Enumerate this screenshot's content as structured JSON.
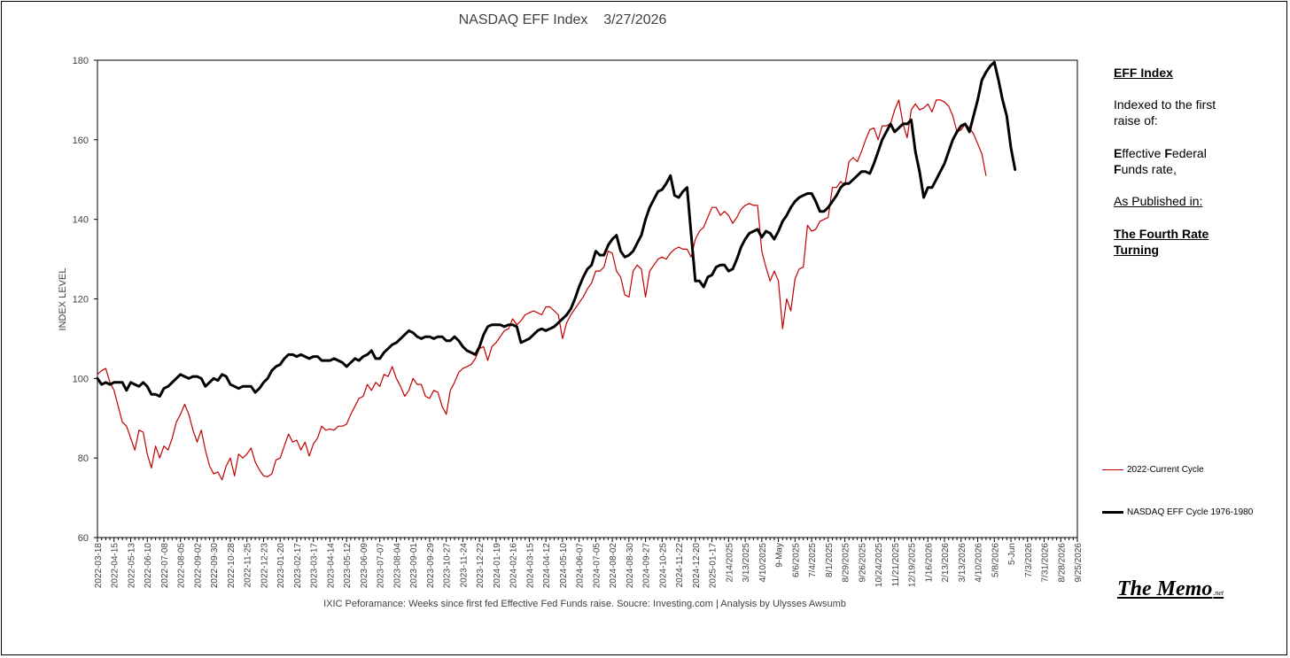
{
  "side_notes": {
    "heading": "EFF Index",
    "line1": "Indexed to the first",
    "line2": "raise of:",
    "line3_E": "E",
    "line3_a": "ffective ",
    "line3_F": "F",
    "line3_b": "ederal",
    "line4_F": "F",
    "line4_b": "unds rate",
    "line4_c": ",",
    "published": "As Published in:",
    "pub1": "The Fourth Rate",
    "pub2": "Turning"
  },
  "brand": {
    "name": "The Memo",
    "suffix": ".net"
  },
  "colors": {
    "current_cycle": "#c00000",
    "eff_cycle": "#000000",
    "axis": "#000000",
    "tick_text": "#404040"
  },
  "chart_data": {
    "type": "line",
    "title": "NASDAQ EFF Index    3/27/2026",
    "ylabel": "INDEX LEVEL",
    "xlabel": "IXIC Peforamance: Weeks since first fed Effective Fed Funds raise.   Soucre: Investing.com  | Analysis by Ulysses Awsumb",
    "ylim": [
      60,
      180
    ],
    "yticks": [
      60,
      80,
      100,
      120,
      140,
      160,
      180
    ],
    "grid": false,
    "legend_placement": "right",
    "x_tick_labels": [
      "2022-03-18",
      "2022-04-15",
      "2022-05-13",
      "2022-06-10",
      "2022-07-08",
      "2022-08-05",
      "2022-09-02",
      "2022-09-30",
      "2022-10-28",
      "2022-11-25",
      "2022-12-23",
      "2023-01-20",
      "2023-02-17",
      "2023-03-17",
      "2023-04-14",
      "2023-05-12",
      "2023-06-09",
      "2023-07-07",
      "2023-08-04",
      "2023-09-01",
      "2023-09-29",
      "2023-10-27",
      "2023-11-24",
      "2023-12-22",
      "2024-01-19",
      "2024-02-16",
      "2024-03-15",
      "2024-04-12",
      "2024-05-10",
      "2024-06-07",
      "2024-07-05",
      "2024-08-02",
      "2024-08-30",
      "2024-09-27",
      "2024-10-25",
      "2024-11-22",
      "2024-12-20",
      "2025-01-17",
      "2/14/2025",
      "3/13/2025",
      "4/10/2025",
      "9-May",
      "6/6/2025",
      "7/4/2025",
      "8/1/2025",
      "8/29/2025",
      "9/26/2025",
      "10/24/2025",
      "11/21/2025",
      "12/19/2025",
      "1/16/2026",
      "2/13/2026",
      "3/13/2026",
      "4/10/2026",
      "5/8/2026",
      "5-Jun",
      "7/3/2026",
      "7/31/2026",
      "8/28/2026",
      "9/25/2026"
    ],
    "series": [
      {
        "name": "2022-Current Cycle",
        "color": "#c00000",
        "values": [
          101,
          102,
          102.5,
          99,
          97,
          93,
          89,
          88,
          85,
          82,
          87,
          86.5,
          81,
          77.5,
          83,
          80,
          83,
          82,
          85,
          89,
          91,
          93.5,
          91,
          87,
          84,
          87,
          82,
          78,
          76,
          76.5,
          74.5,
          78,
          80,
          75.5,
          81,
          80,
          81,
          82.5,
          79,
          77,
          75.5,
          75.3,
          76,
          79.5,
          80,
          83,
          86,
          84,
          84.5,
          82,
          84,
          80.5,
          83.5,
          85,
          88,
          87,
          87.3,
          87,
          88,
          88,
          88.5,
          91,
          93,
          95,
          95.5,
          98.5,
          97,
          99,
          98,
          101,
          100.5,
          103,
          100,
          98,
          95.5,
          97,
          100,
          98.5,
          98.5,
          95.5,
          95,
          97,
          96.5,
          93,
          91,
          97,
          99,
          101.5,
          102.5,
          103,
          103.5,
          105,
          107.5,
          108,
          104.5,
          108,
          109,
          110.5,
          112,
          112.5,
          115,
          113.5,
          114.5,
          116,
          116.5,
          117,
          116.5,
          116,
          118,
          118,
          117,
          116,
          110,
          114,
          116,
          117.5,
          119,
          120.5,
          122.5,
          124,
          127,
          127,
          128,
          132,
          131.5,
          127,
          125.5,
          121,
          120.5,
          127,
          128.5,
          127.5,
          120.5,
          127,
          128.5,
          130,
          130.5,
          130,
          131.5,
          132.5,
          133,
          132.5,
          132.5,
          130.5,
          135,
          137,
          138,
          140.5,
          143,
          143,
          141,
          142,
          141,
          139,
          140.5,
          142.5,
          143.5,
          144,
          143.5,
          143.5,
          132,
          128,
          124.5,
          127,
          124.5,
          112.5,
          120,
          117,
          125,
          127.5,
          128,
          138.5,
          137,
          137.5,
          139.5,
          140,
          140.5,
          148,
          148,
          149.5,
          148.5,
          154.5,
          155.5,
          154.5,
          157,
          160,
          162.5,
          163,
          160,
          163.5,
          163.5,
          164,
          167.5,
          170,
          164,
          160.5,
          167.5,
          169,
          167.5,
          168,
          169,
          167,
          170,
          170,
          169.5,
          168.5,
          166,
          162,
          162.5,
          164,
          163,
          161.5,
          159,
          156.5,
          151
        ]
      },
      {
        "name": "NASDAQ EFF Cycle 1976-1980",
        "color": "#000000",
        "values": [
          100,
          98.5,
          99,
          98.5,
          99,
          99,
          99,
          97,
          99,
          98.5,
          98,
          99,
          98,
          96,
          96,
          95.5,
          97.5,
          98,
          99,
          100,
          101,
          100.5,
          100,
          100.5,
          100.5,
          100,
          98,
          99,
          100,
          99.5,
          101,
          100.5,
          98.5,
          98,
          97.5,
          98,
          98,
          98,
          96.5,
          97.5,
          99,
          100,
          102,
          103,
          103.5,
          105,
          106,
          106,
          105.5,
          106,
          105.5,
          105,
          105.5,
          105.5,
          104.5,
          104.5,
          104.5,
          105,
          104.5,
          104,
          103,
          104,
          105,
          104.5,
          105.5,
          106,
          107,
          105,
          105,
          106.5,
          107.5,
          108.5,
          109,
          110,
          111,
          112,
          111.5,
          110.5,
          110,
          110.5,
          110.5,
          110,
          110.5,
          110.5,
          109.5,
          109.5,
          110.5,
          109.5,
          108,
          107,
          106.5,
          106,
          108,
          111,
          113,
          113.5,
          113.5,
          113.5,
          113,
          113.5,
          113.5,
          113,
          109,
          109.5,
          110,
          111,
          112,
          112.5,
          112,
          112.5,
          113,
          114,
          115,
          116,
          117.5,
          120,
          123,
          125.5,
          127.5,
          128.5,
          132,
          131,
          131,
          133.5,
          135,
          136,
          132,
          130.5,
          131,
          132,
          134,
          136,
          140,
          143,
          145,
          147,
          147.5,
          149,
          151,
          146,
          145.5,
          147,
          148,
          136,
          124.5,
          124.5,
          123,
          125.5,
          126,
          128,
          128.5,
          128.5,
          127,
          127.5,
          130,
          133,
          135,
          136.5,
          137,
          137.5,
          135.5,
          137,
          136.5,
          135,
          137,
          139.5,
          141,
          143,
          144.5,
          145.5,
          146,
          146.5,
          146.5,
          144.5,
          142,
          142,
          143,
          144.5,
          146,
          148,
          149,
          149,
          150,
          151,
          152,
          152,
          151.5,
          154,
          157,
          160,
          162,
          164,
          162,
          163,
          164,
          164,
          165,
          157,
          152,
          145.5,
          148,
          148,
          150,
          152,
          154,
          157,
          160,
          162,
          163.5,
          164,
          162,
          166,
          170,
          175,
          177,
          178.5,
          179.5,
          175,
          170,
          166,
          158,
          152.5
        ]
      }
    ]
  }
}
